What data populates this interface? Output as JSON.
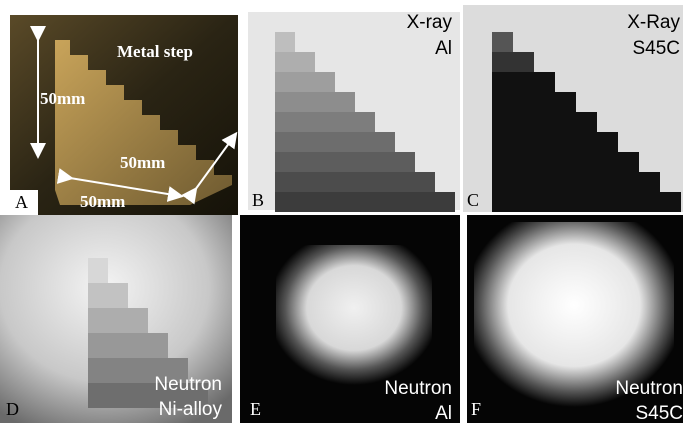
{
  "panels": [
    {
      "label": "A",
      "annotations": [
        "Metal step",
        "50mm",
        "50mm",
        "50mm"
      ]
    },
    {
      "label": "B",
      "caption": [
        "X-ray",
        "Al"
      ]
    },
    {
      "label": "C",
      "caption": [
        "X-Ray",
        "S45C"
      ]
    },
    {
      "label": "D",
      "caption": [
        "Neutron",
        "Ni-alloy"
      ]
    },
    {
      "label": "E",
      "caption": [
        "Neutron",
        "Al"
      ]
    },
    {
      "label": "F",
      "caption": [
        "Neutron",
        "S45C"
      ]
    }
  ]
}
